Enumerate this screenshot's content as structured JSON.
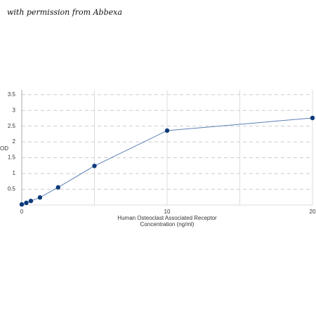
{
  "note": "with permission from Abbexa",
  "chart_data": {
    "type": "line",
    "ylabel": "OD",
    "xlabel": [
      "Human Osteoclast Associated Receptor",
      "Concentration (ng/ml)"
    ],
    "x": [
      0,
      0.3125,
      0.625,
      1.25,
      2.5,
      5,
      10,
      20
    ],
    "series": [
      {
        "color": "#5b7fb5",
        "marker_color": "#0d3a7a",
        "values": [
          0.02,
          0.07,
          0.13,
          0.24,
          0.56,
          1.24,
          2.36,
          2.76
        ]
      }
    ],
    "xlim": [
      0,
      20
    ],
    "xticks": [
      0,
      10,
      20
    ],
    "ylim": [
      0,
      3.65
    ],
    "yticks": [
      0.5,
      1,
      1.5,
      2,
      2.5,
      3,
      3.5
    ],
    "grid": true
  }
}
